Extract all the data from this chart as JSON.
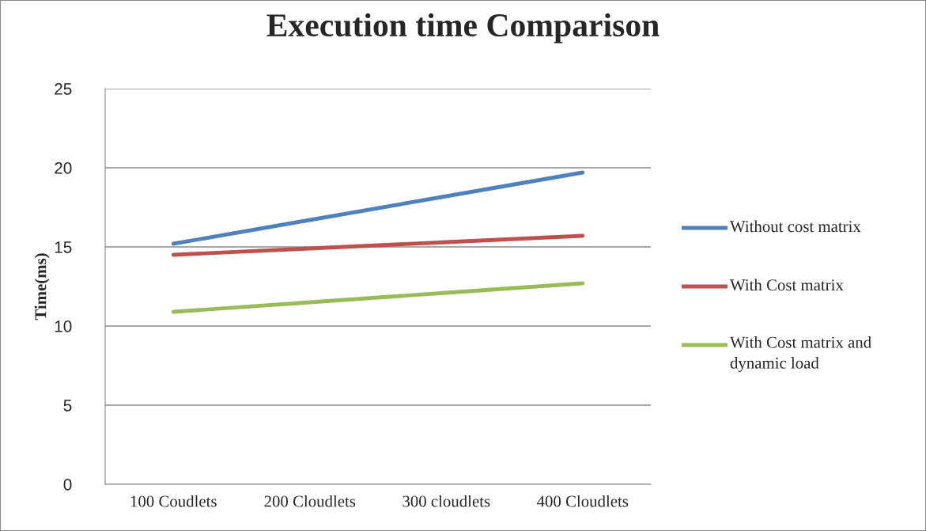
{
  "chart_data": {
    "type": "line",
    "title": "Execution time Comparison",
    "ylabel": "Time(ms)",
    "categories": [
      "100 Coudlets",
      "200 Cloudlets",
      "300 cloudlets",
      "400 Cloudlets"
    ],
    "series": [
      {
        "name": "Without cost matrix",
        "color": "#4f81bd",
        "values": [
          15.2,
          16.7,
          18.2,
          19.7
        ]
      },
      {
        "name": "With Cost matrix",
        "color": "#c0504d",
        "values": [
          14.5,
          14.9,
          15.3,
          15.7
        ]
      },
      {
        "name": "With Cost matrix and dynamic load",
        "color": "#9bbb59",
        "values": [
          10.9,
          11.5,
          12.1,
          12.7
        ]
      }
    ],
    "ylim": [
      0,
      25
    ],
    "yticks": [
      0,
      5,
      10,
      15,
      20,
      25
    ],
    "grid": "y",
    "legend": "right",
    "marker": "none",
    "line_style": "solid"
  }
}
